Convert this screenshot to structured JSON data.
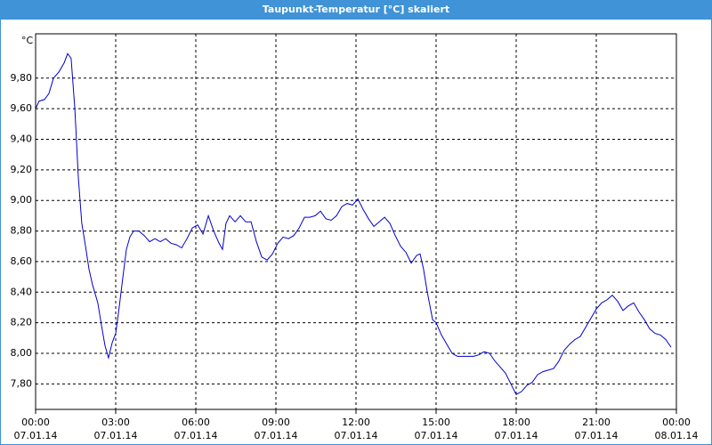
{
  "chart_data": {
    "type": "line",
    "title": "Taupunkt-Temperatur [°C] skaliert",
    "y_unit": "°C",
    "xlim": [
      0,
      24
    ],
    "ylim": [
      7.633,
      10.09
    ],
    "grid": true,
    "color": "#0000cc",
    "xticks": [
      {
        "value": 0,
        "label": "00:00"
      },
      {
        "value": 3,
        "label": "03:00"
      },
      {
        "value": 6,
        "label": "06:00"
      },
      {
        "value": 9,
        "label": "09:00"
      },
      {
        "value": 12,
        "label": "12:00"
      },
      {
        "value": 15,
        "label": "15:00"
      },
      {
        "value": 18,
        "label": "18:00"
      },
      {
        "value": 21,
        "label": "21:00"
      },
      {
        "value": 24,
        "label": "00:00"
      }
    ],
    "xtick_dates": [
      "07.01.14",
      "07.01.14",
      "07.01.14",
      "07.01.14",
      "07.01.14",
      "07.01.14",
      "07.01.14",
      "07.01.14",
      "08.01.14"
    ],
    "yticks": [
      {
        "value": 7.8,
        "label": "7,80"
      },
      {
        "value": 8.0,
        "label": "8,00"
      },
      {
        "value": 8.2,
        "label": "8,20"
      },
      {
        "value": 8.4,
        "label": "8,40"
      },
      {
        "value": 8.6,
        "label": "8,60"
      },
      {
        "value": 8.8,
        "label": "8,80"
      },
      {
        "value": 9.0,
        "label": "9,00"
      },
      {
        "value": 9.2,
        "label": "9,20"
      },
      {
        "value": 9.4,
        "label": "9,40"
      },
      {
        "value": 9.6,
        "label": "9,60"
      },
      {
        "value": 9.8,
        "label": "9,80"
      }
    ],
    "x": [
      0,
      0.13,
      0.33,
      0.5,
      0.67,
      0.87,
      1.07,
      1.2,
      1.33,
      1.47,
      1.6,
      1.73,
      1.87,
      2,
      2.13,
      2.33,
      2.47,
      2.6,
      2.73,
      2.87,
      3,
      3.13,
      3.27,
      3.4,
      3.53,
      3.67,
      3.87,
      4.07,
      4.27,
      4.47,
      4.67,
      4.87,
      5.07,
      5.27,
      5.47,
      5.67,
      5.87,
      6.07,
      6.27,
      6.47,
      6.67,
      6.87,
      7,
      7.13,
      7.27,
      7.47,
      7.67,
      7.87,
      8.07,
      8.27,
      8.47,
      8.67,
      8.87,
      9.07,
      9.27,
      9.47,
      9.67,
      9.87,
      10.07,
      10.27,
      10.47,
      10.67,
      10.87,
      11.07,
      11.27,
      11.47,
      11.67,
      11.87,
      12.07,
      12.27,
      12.47,
      12.67,
      12.87,
      13.07,
      13.27,
      13.47,
      13.67,
      13.87,
      14.07,
      14.27,
      14.4,
      14.53,
      14.67,
      14.87,
      15,
      15.2,
      15.4,
      15.6,
      15.8,
      16,
      16.2,
      16.4,
      16.6,
      16.8,
      17,
      17.2,
      17.4,
      17.6,
      17.8,
      18,
      18.2,
      18.4,
      18.6,
      18.8,
      19,
      19.2,
      19.4,
      19.6,
      19.8,
      20,
      20.2,
      20.4,
      20.6,
      20.8,
      21,
      21.2,
      21.4,
      21.6,
      21.8,
      22,
      22.2,
      22.4,
      22.6,
      22.8,
      23,
      23.2,
      23.4,
      23.6,
      23.8
    ],
    "values": [
      9.6,
      9.65,
      9.66,
      9.7,
      9.8,
      9.84,
      9.9,
      9.96,
      9.93,
      9.6,
      9.15,
      8.85,
      8.7,
      8.55,
      8.45,
      8.33,
      8.18,
      8.05,
      7.97,
      8.07,
      8.13,
      8.3,
      8.5,
      8.68,
      8.76,
      8.8,
      8.8,
      8.77,
      8.73,
      8.75,
      8.73,
      8.75,
      8.72,
      8.71,
      8.69,
      8.75,
      8.82,
      8.84,
      8.78,
      8.9,
      8.8,
      8.72,
      8.68,
      8.85,
      8.9,
      8.86,
      8.9,
      8.86,
      8.86,
      8.73,
      8.63,
      8.61,
      8.65,
      8.72,
      8.76,
      8.75,
      8.77,
      8.82,
      8.89,
      8.89,
      8.9,
      8.93,
      8.88,
      8.87,
      8.9,
      8.96,
      8.98,
      8.97,
      9.01,
      8.94,
      8.88,
      8.83,
      8.86,
      8.89,
      8.85,
      8.77,
      8.7,
      8.66,
      8.59,
      8.64,
      8.65,
      8.55,
      8.4,
      8.22,
      8.2,
      8.12,
      8.06,
      8.0,
      7.98,
      7.98,
      7.98,
      7.98,
      7.99,
      8.01,
      8.0,
      7.95,
      7.91,
      7.87,
      7.8,
      7.73,
      7.75,
      7.79,
      7.81,
      7.86,
      7.88,
      7.89,
      7.9,
      7.95,
      8.02,
      8.06,
      8.09,
      8.11,
      8.17,
      8.23,
      8.29,
      8.33,
      8.35,
      8.38,
      8.34,
      8.28,
      8.31,
      8.33,
      8.27,
      8.22,
      8.16,
      8.13,
      8.12,
      8.09,
      8.04
    ]
  }
}
